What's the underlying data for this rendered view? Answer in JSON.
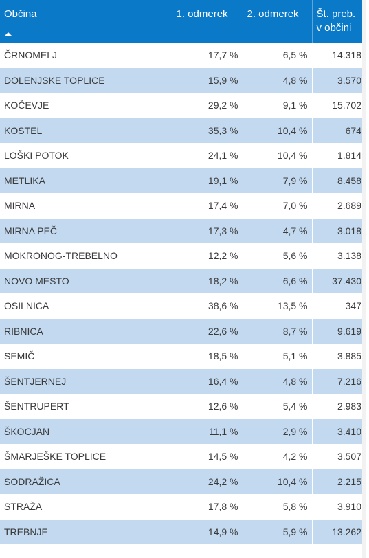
{
  "header": {
    "col_obcina": "Občina",
    "col_odmerek1": "1. odmerek",
    "col_odmerek2": "2. odmerek",
    "col_prebivalci_line1": "Št. preb.",
    "col_prebivalci_line2": "v občini"
  },
  "sort": {
    "column": "Občina",
    "direction": "ascending",
    "icon": "sort-ascending-icon"
  },
  "colors": {
    "header_bg": "#0a79c8",
    "row_alt_bg": "#c3d9f0",
    "row_bg": "#ffffff"
  },
  "rows": [
    {
      "obcina": "ČRNOMELJ",
      "odmerek1": "17,7 %",
      "odmerek2": "6,5 %",
      "prebivalci": "14.318"
    },
    {
      "obcina": "DOLENJSKE TOPLICE",
      "odmerek1": "15,9 %",
      "odmerek2": "4,8 %",
      "prebivalci": "3.570"
    },
    {
      "obcina": "KOČEVJE",
      "odmerek1": "29,2 %",
      "odmerek2": "9,1 %",
      "prebivalci": "15.702"
    },
    {
      "obcina": "KOSTEL",
      "odmerek1": "35,3 %",
      "odmerek2": "10,4 %",
      "prebivalci": "674"
    },
    {
      "obcina": "LOŠKI POTOK",
      "odmerek1": "24,1 %",
      "odmerek2": "10,4 %",
      "prebivalci": "1.814"
    },
    {
      "obcina": "METLIKA",
      "odmerek1": "19,1 %",
      "odmerek2": "7,9 %",
      "prebivalci": "8.458"
    },
    {
      "obcina": "MIRNA",
      "odmerek1": "17,4 %",
      "odmerek2": "7,0 %",
      "prebivalci": "2.689"
    },
    {
      "obcina": "MIRNA PEČ",
      "odmerek1": "17,3 %",
      "odmerek2": "4,7 %",
      "prebivalci": "3.018"
    },
    {
      "obcina": "MOKRONOG-TREBELNO",
      "odmerek1": "12,2 %",
      "odmerek2": "5,6 %",
      "prebivalci": "3.138"
    },
    {
      "obcina": "NOVO MESTO",
      "odmerek1": "18,2 %",
      "odmerek2": "6,6 %",
      "prebivalci": "37.430"
    },
    {
      "obcina": "OSILNICA",
      "odmerek1": "38,6 %",
      "odmerek2": "13,5 %",
      "prebivalci": "347"
    },
    {
      "obcina": "RIBNICA",
      "odmerek1": "22,6 %",
      "odmerek2": "8,7 %",
      "prebivalci": "9.619"
    },
    {
      "obcina": "SEMIČ",
      "odmerek1": "18,5 %",
      "odmerek2": "5,1 %",
      "prebivalci": "3.885"
    },
    {
      "obcina": "ŠENTJERNEJ",
      "odmerek1": "16,4 %",
      "odmerek2": "4,8 %",
      "prebivalci": "7.216"
    },
    {
      "obcina": "ŠENTRUPERT",
      "odmerek1": "12,6 %",
      "odmerek2": "5,4 %",
      "prebivalci": "2.983"
    },
    {
      "obcina": "ŠKOCJAN",
      "odmerek1": "11,1 %",
      "odmerek2": "2,9 %",
      "prebivalci": "3.410"
    },
    {
      "obcina": "ŠMARJEŠKE TOPLICE",
      "odmerek1": "14,5 %",
      "odmerek2": "4,2 %",
      "prebivalci": "3.507"
    },
    {
      "obcina": "SODRAŽICA",
      "odmerek1": "24,2 %",
      "odmerek2": "10,4 %",
      "prebivalci": "2.215"
    },
    {
      "obcina": "STRAŽA",
      "odmerek1": "17,8 %",
      "odmerek2": "5,8 %",
      "prebivalci": "3.910"
    },
    {
      "obcina": "TREBNJE",
      "odmerek1": "14,9 %",
      "odmerek2": "5,9 %",
      "prebivalci": "13.262"
    },
    {
      "obcina": "",
      "odmerek1": "",
      "odmerek2": "",
      "prebivalci": ""
    }
  ]
}
